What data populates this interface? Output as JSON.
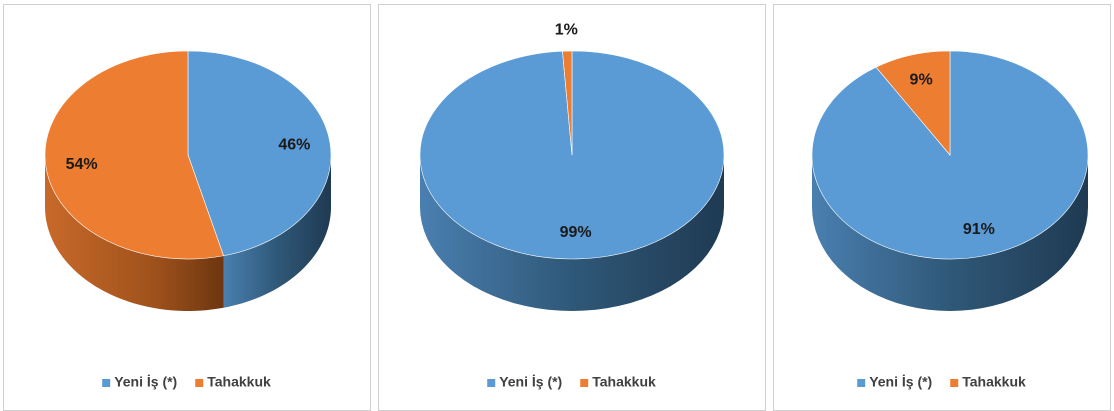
{
  "chart_data": [
    {
      "type": "pie",
      "categories": [
        "Yeni İş (*)",
        "Tahakkuk"
      ],
      "values": [
        46,
        54
      ],
      "value_labels": [
        "46%",
        "54%"
      ],
      "colors": [
        "#5b9bd5",
        "#ed7d31"
      ]
    },
    {
      "type": "pie",
      "categories": [
        "Yeni İş (*)",
        "Tahakkuk"
      ],
      "values": [
        99,
        1
      ],
      "value_labels": [
        "99%",
        "1%"
      ],
      "colors": [
        "#5b9bd5",
        "#ed7d31"
      ]
    },
    {
      "type": "pie",
      "categories": [
        "Yeni İş (*)",
        "Tahakkuk"
      ],
      "values": [
        91,
        9
      ],
      "value_labels": [
        "91%",
        "9%"
      ],
      "colors": [
        "#5b9bd5",
        "#ed7d31"
      ]
    }
  ]
}
